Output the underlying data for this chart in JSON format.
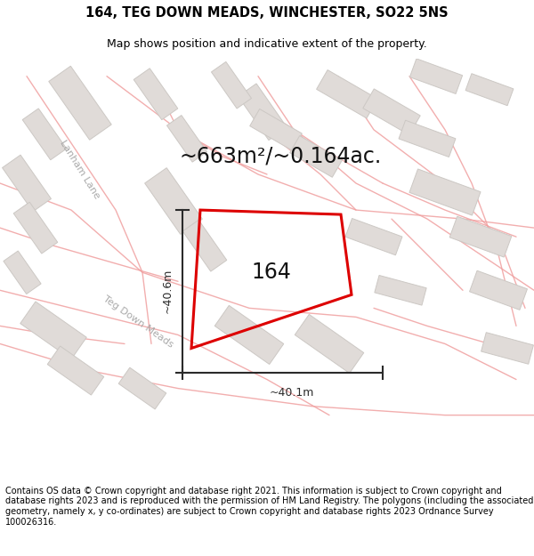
{
  "title": "164, TEG DOWN MEADS, WINCHESTER, SO22 5NS",
  "subtitle": "Map shows position and indicative extent of the property.",
  "area_text": "~663m²/~0.164ac.",
  "plot_label": "164",
  "dim_width": "~40.1m",
  "dim_height": "~40.6m",
  "footer": "Contains OS data © Crown copyright and database right 2021. This information is subject to Crown copyright and database rights 2023 and is reproduced with the permission of HM Land Registry. The polygons (including the associated geometry, namely x, y co-ordinates) are subject to Crown copyright and database rights 2023 Ordnance Survey 100026316.",
  "bg_color": "#ffffff",
  "plot_outline_color": "#dd0000",
  "road_line_color": "#f0a0a0",
  "building_color": "#e0dbd8",
  "building_edge_color": "#ccc8c4",
  "map_bg": "#ffffff",
  "title_fontsize": 10.5,
  "subtitle_fontsize": 9,
  "area_fontsize": 17,
  "label_fontsize": 17,
  "dim_fontsize": 9,
  "road_label_fontsize": 8,
  "footer_fontsize": 7
}
